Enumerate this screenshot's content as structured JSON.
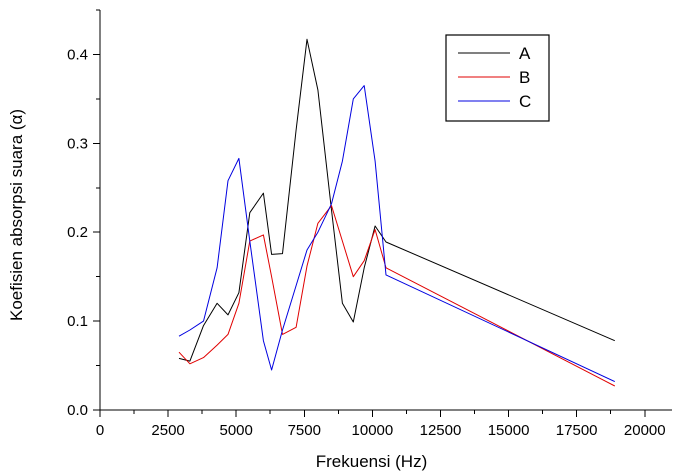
{
  "chart_data": {
    "type": "line",
    "xlabel": "Frekuensi (Hz)",
    "ylabel": "Koefisien absorpsi suara (α)",
    "xlim": [
      0,
      21000
    ],
    "ylim": [
      0,
      0.45
    ],
    "xticks": [
      0,
      2500,
      5000,
      7500,
      10000,
      12500,
      15000,
      17500,
      20000
    ],
    "xtick_labels": [
      "0",
      "2500",
      "5000",
      "7500",
      "10000",
      "12500",
      "15000",
      "17500",
      "20000"
    ],
    "yticks": [
      0.0,
      0.1,
      0.2,
      0.3,
      0.4
    ],
    "ytick_labels": [
      "0.0",
      "0.1",
      "0.2",
      "0.3",
      "0.4"
    ],
    "legend_position": "top-right",
    "grid": false,
    "series": [
      {
        "name": "A",
        "color": "#000000",
        "x": [
          2900,
          3300,
          3800,
          4300,
          4700,
          5100,
          5500,
          6000,
          6300,
          6700,
          7200,
          7600,
          8000,
          8500,
          8900,
          9300,
          9700,
          10100,
          10500,
          18900
        ],
        "y": [
          0.058,
          0.055,
          0.095,
          0.12,
          0.107,
          0.132,
          0.222,
          0.244,
          0.175,
          0.176,
          0.315,
          0.417,
          0.36,
          0.225,
          0.12,
          0.099,
          0.16,
          0.207,
          0.189,
          0.078
        ]
      },
      {
        "name": "B",
        "color": "#e00000",
        "x": [
          2900,
          3300,
          3800,
          4300,
          4700,
          5100,
          5500,
          6000,
          6300,
          6700,
          7200,
          7600,
          8000,
          8500,
          8900,
          9300,
          9700,
          10100,
          10500,
          18900
        ],
        "y": [
          0.065,
          0.052,
          0.059,
          0.073,
          0.085,
          0.12,
          0.19,
          0.197,
          0.15,
          0.085,
          0.093,
          0.162,
          0.21,
          0.23,
          0.19,
          0.15,
          0.168,
          0.203,
          0.16,
          0.027
        ]
      },
      {
        "name": "C",
        "color": "#0000e0",
        "x": [
          2900,
          3300,
          3800,
          4300,
          4700,
          5100,
          5500,
          6000,
          6300,
          6700,
          7200,
          7600,
          8000,
          8500,
          8900,
          9300,
          9700,
          10100,
          10500,
          18900
        ],
        "y": [
          0.083,
          0.09,
          0.1,
          0.16,
          0.258,
          0.283,
          0.19,
          0.078,
          0.045,
          0.09,
          0.14,
          0.18,
          0.2,
          0.232,
          0.28,
          0.35,
          0.365,
          0.28,
          0.152,
          0.032
        ]
      }
    ]
  }
}
